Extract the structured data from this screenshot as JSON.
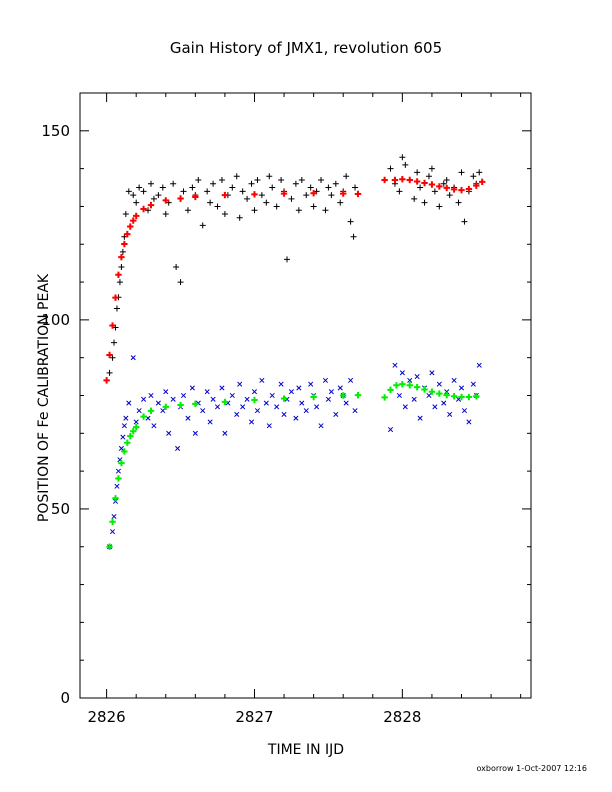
{
  "chart_data": {
    "type": "scatter",
    "title": "Gain History of JMX1, revolution 605",
    "xlabel": "TIME IN IJD",
    "ylabel": "POSITION OF Fe CALIBRATION PEAK",
    "xlim": [
      2825.82,
      2828.87
    ],
    "ylim": [
      0,
      160
    ],
    "xticks": [
      2826,
      2827,
      2828
    ],
    "xtick_labels": [
      "2826",
      "2827",
      "2828"
    ],
    "yticks": [
      0,
      50,
      100,
      150
    ],
    "ytick_labels": [
      "0",
      "50",
      "100",
      "150"
    ],
    "grid": false,
    "legend": "none",
    "series": [
      {
        "marker": "plus",
        "color": "#000000",
        "x": [
          2826.02,
          2826.04,
          2826.05,
          2826.06,
          2826.07,
          2826.08,
          2826.09,
          2826.1,
          2826.11,
          2826.12,
          2826.13,
          2826.15,
          2826.18,
          2826.2,
          2826.22,
          2826.25,
          2826.28,
          2826.3,
          2826.32,
          2826.35,
          2826.38,
          2826.4,
          2826.42,
          2826.45,
          2826.47,
          2826.5,
          2826.5,
          2826.52,
          2826.55,
          2826.58,
          2826.6,
          2826.62,
          2826.65,
          2826.68,
          2826.7,
          2826.72,
          2826.75,
          2826.78,
          2826.8,
          2826.82,
          2826.85,
          2826.88,
          2826.9,
          2826.92,
          2826.95,
          2826.98,
          2827.0,
          2827.02,
          2827.05,
          2827.08,
          2827.1,
          2827.12,
          2827.15,
          2827.18,
          2827.2,
          2827.22,
          2827.25,
          2827.28,
          2827.3,
          2827.32,
          2827.35,
          2827.38,
          2827.4,
          2827.42,
          2827.45,
          2827.48,
          2827.5,
          2827.52,
          2827.55,
          2827.58,
          2827.6,
          2827.62,
          2827.65,
          2827.67,
          2827.68,
          2827.92,
          2827.95,
          2827.98,
          2828.0,
          2828.02,
          2828.05,
          2828.08,
          2828.1,
          2828.12,
          2828.15,
          2828.18,
          2828.2,
          2828.22,
          2828.25,
          2828.28,
          2828.3,
          2828.32,
          2828.35,
          2828.38,
          2828.4,
          2828.42,
          2828.45,
          2828.48,
          2828.5,
          2828.52
        ],
        "y": [
          86,
          90,
          94,
          98,
          103,
          106,
          110,
          114,
          118,
          122,
          128,
          134,
          133,
          131,
          135,
          134,
          129,
          136,
          132,
          133,
          135,
          128,
          131,
          136,
          114,
          110,
          132,
          134,
          129,
          135,
          133,
          137,
          125,
          134,
          131,
          136,
          130,
          137,
          128,
          133,
          135,
          138,
          127,
          134,
          132,
          136,
          129,
          137,
          133,
          131,
          138,
          135,
          130,
          137,
          134,
          116,
          132,
          136,
          129,
          137,
          133,
          135,
          130,
          134,
          137,
          129,
          135,
          133,
          136,
          131,
          134,
          138,
          126,
          122,
          135,
          140,
          136,
          134,
          143,
          141,
          137,
          132,
          139,
          135,
          131,
          138,
          140,
          134,
          130,
          136,
          137,
          133,
          135,
          131,
          139,
          126,
          134,
          138,
          136,
          139
        ]
      },
      {
        "marker": "cross",
        "color": "#0000cc",
        "x": [
          2826.02,
          2826.04,
          2826.05,
          2826.06,
          2826.07,
          2826.08,
          2826.09,
          2826.1,
          2826.11,
          2826.12,
          2826.13,
          2826.15,
          2826.18,
          2826.2,
          2826.22,
          2826.25,
          2826.28,
          2826.3,
          2826.32,
          2826.35,
          2826.38,
          2826.4,
          2826.42,
          2826.45,
          2826.48,
          2826.5,
          2826.52,
          2826.55,
          2826.58,
          2826.6,
          2826.62,
          2826.65,
          2826.68,
          2826.7,
          2826.72,
          2826.75,
          2826.78,
          2826.8,
          2826.82,
          2826.85,
          2826.88,
          2826.9,
          2826.92,
          2826.95,
          2826.98,
          2827.0,
          2827.02,
          2827.05,
          2827.08,
          2827.1,
          2827.12,
          2827.15,
          2827.18,
          2827.2,
          2827.22,
          2827.25,
          2827.28,
          2827.3,
          2827.32,
          2827.35,
          2827.38,
          2827.4,
          2827.42,
          2827.45,
          2827.48,
          2827.5,
          2827.52,
          2827.55,
          2827.58,
          2827.6,
          2827.62,
          2827.65,
          2827.68,
          2827.92,
          2827.95,
          2827.98,
          2828.0,
          2828.02,
          2828.05,
          2828.08,
          2828.1,
          2828.12,
          2828.15,
          2828.18,
          2828.2,
          2828.22,
          2828.25,
          2828.28,
          2828.3,
          2828.32,
          2828.35,
          2828.38,
          2828.4,
          2828.42,
          2828.45,
          2828.48,
          2828.5,
          2828.52
        ],
        "y": [
          40,
          44,
          48,
          52,
          56,
          60,
          63,
          66,
          69,
          72,
          74,
          78,
          90,
          73,
          76,
          79,
          74,
          80,
          72,
          78,
          76,
          81,
          70,
          79,
          66,
          77,
          80,
          74,
          82,
          70,
          78,
          76,
          81,
          73,
          79,
          77,
          82,
          70,
          78,
          80,
          75,
          83,
          77,
          79,
          73,
          81,
          76,
          84,
          78,
          72,
          80,
          77,
          83,
          75,
          79,
          81,
          74,
          82,
          78,
          76,
          83,
          80,
          77,
          72,
          84,
          79,
          81,
          75,
          82,
          80,
          78,
          84,
          76,
          71,
          88,
          80,
          86,
          77,
          84,
          79,
          85,
          74,
          82,
          80,
          86,
          77,
          83,
          78,
          81,
          75,
          84,
          79,
          82,
          76,
          73,
          83,
          80,
          88
        ]
      },
      {
        "marker": "plus",
        "color": "#ff0000",
        "x": [
          2826.0,
          2826.02,
          2826.04,
          2826.06,
          2826.08,
          2826.1,
          2826.12,
          2826.14,
          2826.16,
          2826.18,
          2826.2,
          2826.25,
          2826.3,
          2826.4,
          2826.5,
          2826.6,
          2826.8,
          2827.0,
          2827.2,
          2827.4,
          2827.6,
          2827.7,
          2827.88,
          2827.95,
          2828.0,
          2828.05,
          2828.1,
          2828.15,
          2828.2,
          2828.25,
          2828.3,
          2828.35,
          2828.4,
          2828.45,
          2828.5,
          2828.54
        ],
        "y": [
          84.0,
          90.72,
          98.5,
          105.88,
          111.93,
          116.58,
          120.06,
          122.68,
          124.69,
          126.26,
          127.5,
          129.32,
          130.35,
          131.6,
          132.1,
          132.5,
          133.0,
          133.2,
          133.4,
          133.5,
          133.4,
          133.3,
          137.0,
          137.0,
          137.2,
          137.0,
          136.6,
          136.2,
          135.8,
          135.3,
          134.9,
          134.5,
          134.3,
          134.6,
          135.5,
          136.5
        ]
      },
      {
        "marker": "plus",
        "color": "#00ee00",
        "x": [
          2826.02,
          2826.04,
          2826.06,
          2826.08,
          2826.1,
          2826.12,
          2826.14,
          2826.16,
          2826.18,
          2826.2,
          2826.25,
          2826.3,
          2826.4,
          2826.5,
          2826.6,
          2826.8,
          2827.0,
          2827.2,
          2827.4,
          2827.6,
          2827.7,
          2827.88,
          2827.92,
          2827.96,
          2828.0,
          2828.05,
          2828.1,
          2828.15,
          2828.2,
          2828.25,
          2828.3,
          2828.35,
          2828.4,
          2828.45,
          2828.5
        ],
        "y": [
          40.0,
          46.61,
          52.82,
          58.06,
          62.12,
          65.2,
          67.51,
          69.25,
          70.55,
          71.64,
          74.42,
          75.94,
          77.0,
          77.5,
          77.8,
          78.3,
          78.8,
          79.2,
          79.6,
          80.0,
          80.1,
          79.5,
          81.5,
          82.7,
          83.0,
          82.7,
          82.2,
          81.6,
          81.0,
          80.5,
          80.1,
          79.8,
          79.6,
          79.6,
          79.8
        ]
      }
    ]
  },
  "footer": {
    "text": "oxborrow   1-Oct-2007 12:16"
  }
}
